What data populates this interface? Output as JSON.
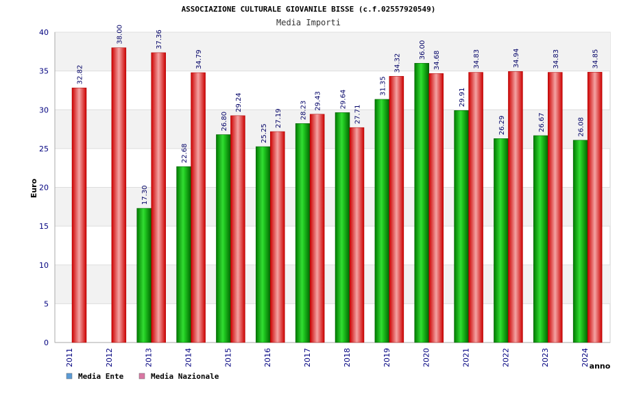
{
  "chart_data": {
    "type": "bar",
    "title": "ASSOCIAZIONE CULTURALE GIOVANILE BISSE (c.f.02557920549)",
    "subtitle": "Media Importi",
    "ylabel": "Euro",
    "xlabel": "anno",
    "ylim": [
      0,
      40
    ],
    "yticks": [
      0,
      5,
      10,
      15,
      20,
      25,
      30,
      35,
      40
    ],
    "grid": "horizontal-bands",
    "legend_position": "bottom-left",
    "categories": [
      "2011",
      "2012",
      "2013",
      "2014",
      "2015",
      "2016",
      "2017",
      "2018",
      "2019",
      "2020",
      "2021",
      "2022",
      "2023",
      "2024"
    ],
    "series": [
      {
        "name": "Media Ente",
        "color": "#00aa00",
        "legend_color": "#5b9bd5",
        "values": [
          null,
          null,
          17.3,
          22.68,
          26.8,
          25.25,
          28.23,
          29.64,
          31.35,
          36.0,
          29.91,
          26.29,
          26.67,
          26.08
        ],
        "labels": [
          "",
          "",
          "17.30",
          "22.68",
          "26.80",
          "25.25",
          "28.23",
          "29.64",
          "31.35",
          "36.00",
          "29.91",
          "26.29",
          "26.67",
          "26.08"
        ]
      },
      {
        "name": "Media Nazionale",
        "color": "#ee1111",
        "legend_color": "#d977a3",
        "values": [
          32.82,
          38.0,
          37.36,
          34.79,
          29.24,
          27.19,
          29.43,
          27.71,
          34.32,
          34.68,
          34.83,
          34.94,
          34.83,
          34.85
        ],
        "labels": [
          "32.82",
          "38.00",
          "37.36",
          "34.79",
          "29.24",
          "27.19",
          "29.43",
          "27.71",
          "34.32",
          "34.68",
          "34.83",
          "34.94",
          "34.83",
          "34.85"
        ]
      }
    ]
  }
}
